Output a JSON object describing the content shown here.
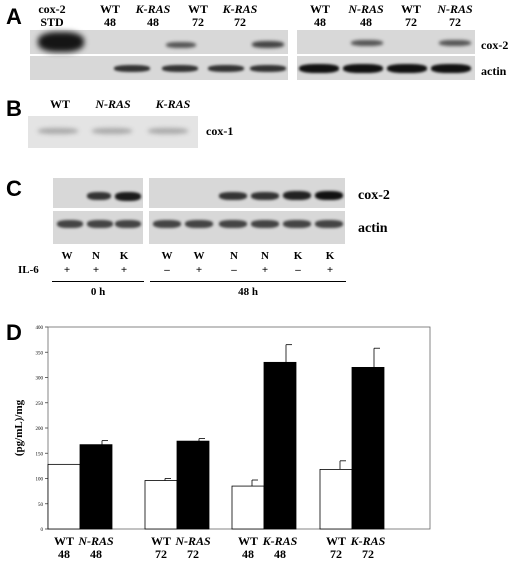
{
  "panels": {
    "a": "A",
    "b": "B",
    "c": "C",
    "d": "D"
  },
  "panel_a": {
    "left_lanes": [
      {
        "top": "cox-2",
        "bottom": "STD",
        "italic": false
      },
      {
        "top": "WT",
        "bottom": "48",
        "italic": false
      },
      {
        "top": "K-RAS",
        "bottom": "48",
        "italic": true
      },
      {
        "top": "WT",
        "bottom": "72",
        "italic": false
      },
      {
        "top": "K-RAS",
        "bottom": "72",
        "italic": true
      }
    ],
    "right_lanes": [
      {
        "top": "WT",
        "bottom": "48",
        "italic": false
      },
      {
        "top": "N-RAS",
        "bottom": "48",
        "italic": true
      },
      {
        "top": "WT",
        "bottom": "72",
        "italic": false
      },
      {
        "top": "N-RAS",
        "bottom": "72",
        "italic": true
      }
    ],
    "band_labels": [
      "cox-2",
      "actin"
    ]
  },
  "panel_b": {
    "lanes": [
      "WT",
      "N-RAS",
      "K-RAS"
    ],
    "band_label": "cox-1"
  },
  "panel_c": {
    "band_labels": [
      "cox-2",
      "actin"
    ],
    "lanes": [
      "W",
      "N",
      "K",
      "W",
      "W",
      "N",
      "N",
      "K",
      "K"
    ],
    "il6_label": "IL-6",
    "il6": [
      "+",
      "+",
      "+",
      "–",
      "+",
      "–",
      "+",
      "–",
      "+"
    ],
    "time_labels": [
      "0 h",
      "48 h"
    ]
  },
  "chart_data": {
    "type": "bar",
    "ylabel": "(pg/mL)/mg",
    "ylim": [
      0,
      400
    ],
    "yticks": [
      "0",
      "50",
      "100",
      "150",
      "200",
      "250",
      "300",
      "350",
      "400"
    ],
    "groups": [
      {
        "bars": [
          {
            "label_top": "WT",
            "label_bottom": "48",
            "value": 128,
            "err": 0,
            "fill": "white"
          },
          {
            "label_top": "N-RAS",
            "label_bottom": "48",
            "value": 167,
            "err": 8,
            "fill": "black"
          }
        ]
      },
      {
        "bars": [
          {
            "label_top": "WT",
            "label_bottom": "72",
            "value": 96,
            "err": 4,
            "fill": "white"
          },
          {
            "label_top": "N-RAS",
            "label_bottom": "72",
            "value": 174,
            "err": 5,
            "fill": "black"
          }
        ]
      },
      {
        "bars": [
          {
            "label_top": "WT",
            "label_bottom": "48",
            "value": 85,
            "err": 12,
            "fill": "white"
          },
          {
            "label_top": "K-RAS",
            "label_bottom": "48",
            "value": 330,
            "err": 35,
            "fill": "black"
          }
        ]
      },
      {
        "bars": [
          {
            "label_top": "WT",
            "label_bottom": "72",
            "value": 118,
            "err": 17,
            "fill": "white"
          },
          {
            "label_top": "K-RAS",
            "label_bottom": "72",
            "value": 320,
            "err": 38,
            "fill": "black"
          }
        ]
      }
    ]
  }
}
